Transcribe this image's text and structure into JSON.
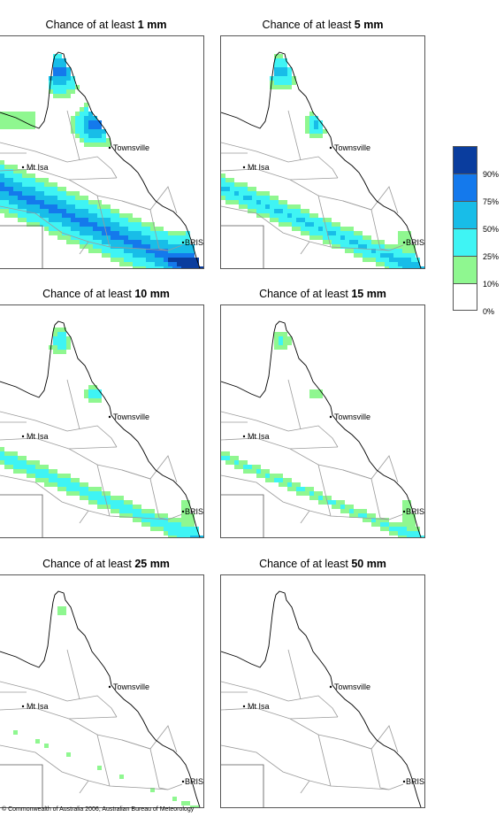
{
  "panels": [
    {
      "title_prefix": "Chance of at least ",
      "title_amount": "1 mm",
      "level": 1
    },
    {
      "title_prefix": "Chance of at least ",
      "title_amount": "5 mm",
      "level": 2
    },
    {
      "title_prefix": "Chance of at least ",
      "title_amount": "10 mm",
      "level": 3
    },
    {
      "title_prefix": "Chance of at least ",
      "title_amount": "15 mm",
      "level": 4
    },
    {
      "title_prefix": "Chance of at least ",
      "title_amount": "25 mm",
      "level": 5
    },
    {
      "title_prefix": "Chance of at least ",
      "title_amount": "50 mm",
      "level": 6
    }
  ],
  "places": {
    "townsville": "Townsville",
    "mt_isa": "Mt Isa",
    "brisbane": "BRIS"
  },
  "legend": {
    "labels": [
      "90%",
      "75%",
      "50%",
      "25%",
      "10%",
      "0%"
    ],
    "colors": [
      "#0a3d9e",
      "#1479ec",
      "#18bde8",
      "#3ff4f4",
      "#8ff790",
      "#ffffff"
    ]
  },
  "colors": {
    "band_10": "#8ff790",
    "band_25": "#3ff4f4",
    "band_50": "#18bde8",
    "band_75": "#1479ec",
    "band_90": "#0a3d9e",
    "coast": "#000000",
    "border": "#9a9a9a"
  },
  "copyright": "© Commonwealth of Australia 2006, Australian Bureau of Meteorology"
}
